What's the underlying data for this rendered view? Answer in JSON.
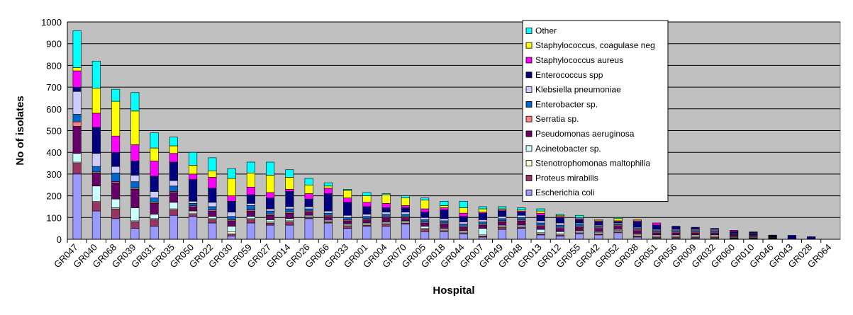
{
  "chart_data": {
    "type": "bar",
    "stacked": true,
    "xlabel": "Hospital",
    "ylabel": "No of isolates",
    "ylim": [
      0,
      1000
    ],
    "yticks": [
      0,
      100,
      200,
      300,
      400,
      500,
      600,
      700,
      800,
      900,
      1000
    ],
    "grid": "horizontal",
    "legend_position": "top-right",
    "categories": [
      "GR047",
      "GR040",
      "GR068",
      "GR039",
      "GR031",
      "GR035",
      "GR050",
      "GR022",
      "GR030",
      "GR059",
      "GR027",
      "GR014",
      "GR026",
      "GR066",
      "GR033",
      "GR001",
      "GR004",
      "GR070",
      "GR005",
      "GR018",
      "GR044",
      "GR007",
      "GR049",
      "GR048",
      "GR013",
      "GR012",
      "GR055",
      "GR042",
      "GR052",
      "GR038",
      "GR051",
      "GR056",
      "GR009",
      "GR032",
      "GR060",
      "GR010",
      "GR046",
      "GR043",
      "GR028",
      "GR064"
    ],
    "series": [
      {
        "name": "Escherichia coli",
        "color": "#9999ff",
        "values": [
          300,
          130,
          95,
          50,
          60,
          110,
          105,
          75,
          15,
          75,
          65,
          65,
          95,
          75,
          50,
          60,
          60,
          70,
          35,
          35,
          25,
          10,
          45,
          50,
          20,
          15,
          25,
          20,
          30,
          10,
          5,
          5,
          5,
          5,
          3,
          3,
          2,
          0,
          0,
          0
        ]
      },
      {
        "name": "Proteus mirabilis",
        "color": "#993366",
        "values": [
          50,
          40,
          45,
          30,
          30,
          25,
          10,
          15,
          10,
          15,
          10,
          15,
          5,
          5,
          10,
          5,
          10,
          5,
          10,
          5,
          5,
          5,
          10,
          5,
          5,
          5,
          5,
          5,
          5,
          5,
          5,
          5,
          5,
          5,
          3,
          3,
          1,
          0,
          0,
          0
        ]
      },
      {
        "name": "Stenotrophomonas maltophilia",
        "color": "#ffffcc",
        "values": [
          5,
          5,
          5,
          5,
          5,
          5,
          5,
          5,
          10,
          5,
          5,
          5,
          5,
          5,
          5,
          5,
          5,
          5,
          5,
          5,
          5,
          5,
          5,
          5,
          5,
          5,
          5,
          5,
          5,
          5,
          5,
          5,
          5,
          5,
          3,
          3,
          2,
          0,
          0,
          0
        ]
      },
      {
        "name": "Acinetobacter sp.",
        "color": "#ccffff",
        "values": [
          40,
          70,
          40,
          60,
          20,
          30,
          10,
          10,
          25,
          10,
          10,
          10,
          5,
          5,
          5,
          5,
          5,
          5,
          10,
          5,
          5,
          30,
          5,
          5,
          15,
          10,
          5,
          5,
          5,
          5,
          5,
          5,
          5,
          5,
          3,
          3,
          2,
          0,
          0,
          0
        ]
      },
      {
        "name": "Pseudomonas aeruginosa",
        "color": "#660066",
        "values": [
          125,
          60,
          75,
          85,
          50,
          45,
          20,
          25,
          25,
          25,
          20,
          25,
          15,
          15,
          15,
          15,
          20,
          15,
          15,
          20,
          15,
          15,
          15,
          20,
          15,
          15,
          15,
          15,
          15,
          15,
          10,
          10,
          10,
          10,
          8,
          8,
          4,
          0,
          0,
          0
        ]
      },
      {
        "name": "Serratia sp.",
        "color": "#ff8080",
        "values": [
          20,
          5,
          5,
          5,
          5,
          5,
          5,
          5,
          5,
          5,
          5,
          5,
          5,
          5,
          5,
          5,
          5,
          5,
          5,
          5,
          5,
          5,
          5,
          5,
          5,
          5,
          5,
          5,
          5,
          5,
          5,
          5,
          5,
          5,
          3,
          3,
          1,
          0,
          0,
          0
        ]
      },
      {
        "name": "Enterobacter sp.",
        "color": "#0066cc",
        "values": [
          35,
          25,
          40,
          30,
          20,
          25,
          10,
          15,
          15,
          20,
          15,
          15,
          10,
          10,
          10,
          10,
          10,
          10,
          10,
          10,
          10,
          10,
          10,
          10,
          10,
          10,
          10,
          5,
          5,
          5,
          5,
          5,
          5,
          5,
          3,
          3,
          2,
          0,
          0,
          0
        ]
      },
      {
        "name": "Klebsiella pneumoniae",
        "color": "#ccccff",
        "values": [
          105,
          60,
          30,
          30,
          30,
          25,
          10,
          20,
          20,
          10,
          10,
          10,
          10,
          10,
          10,
          10,
          10,
          10,
          10,
          10,
          10,
          10,
          10,
          10,
          10,
          10,
          5,
          5,
          5,
          5,
          5,
          5,
          5,
          5,
          3,
          3,
          2,
          0,
          0,
          0
        ]
      },
      {
        "name": "Enterococcus spp",
        "color": "#000080",
        "values": [
          20,
          120,
          65,
          65,
          70,
          85,
          100,
          65,
          50,
          40,
          50,
          70,
          35,
          80,
          60,
          35,
          20,
          20,
          25,
          40,
          25,
          30,
          25,
          15,
          25,
          25,
          15,
          15,
          5,
          25,
          20,
          15,
          10,
          5,
          7,
          5,
          3,
          18,
          12,
          0
        ]
      },
      {
        "name": "Staphylococcus aureus",
        "color": "#ff00ff",
        "values": [
          75,
          65,
          75,
          75,
          70,
          40,
          25,
          50,
          25,
          35,
          25,
          10,
          25,
          25,
          20,
          20,
          20,
          10,
          15,
          10,
          15,
          5,
          5,
          5,
          10,
          5,
          5,
          5,
          5,
          5,
          10,
          0,
          0,
          0,
          5,
          0,
          0,
          0,
          0,
          0
        ]
      },
      {
        "name": "Staphylococcus, coagulase neg",
        "color": "#ffff00",
        "values": [
          15,
          115,
          160,
          155,
          60,
          35,
          40,
          30,
          80,
          65,
          80,
          55,
          40,
          10,
          35,
          30,
          40,
          35,
          40,
          10,
          25,
          15,
          5,
          5,
          10,
          5,
          5,
          5,
          10,
          5,
          0,
          0,
          0,
          0,
          0,
          0,
          0,
          0,
          0,
          0
        ]
      },
      {
        "name": "Other",
        "color": "#00ffff",
        "values": [
          170,
          125,
          55,
          85,
          70,
          40,
          60,
          60,
          45,
          50,
          60,
          35,
          30,
          15,
          5,
          15,
          5,
          10,
          10,
          20,
          30,
          10,
          10,
          10,
          10,
          5,
          10,
          0,
          5,
          0,
          0,
          0,
          0,
          0,
          0,
          0,
          0,
          0,
          0,
          0
        ]
      }
    ]
  }
}
